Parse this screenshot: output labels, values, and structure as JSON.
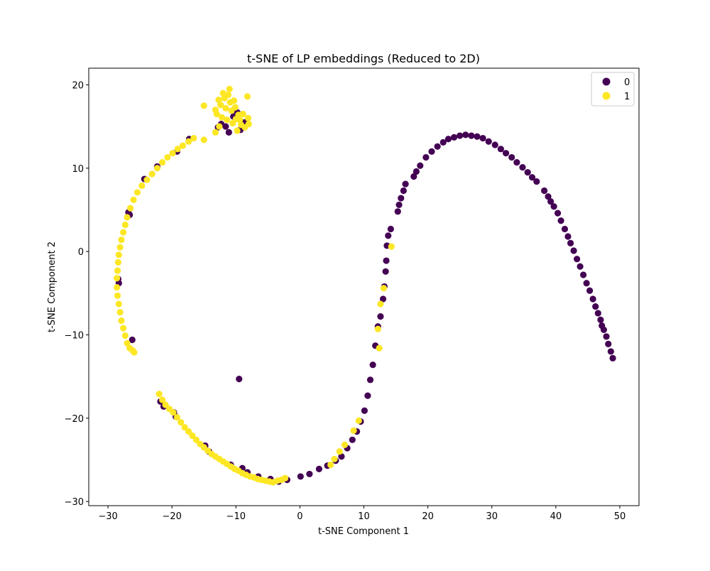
{
  "chart_data": {
    "type": "scatter",
    "title": "t-SNE of LP embeddings (Reduced to 2D)",
    "xlabel": "t-SNE Component 1",
    "ylabel": "t-SNE Component 2",
    "xlim": [
      -33,
      53
    ],
    "ylim": [
      -30.5,
      22
    ],
    "xticks": [
      -30,
      -20,
      -10,
      0,
      10,
      20,
      30,
      40,
      50
    ],
    "yticks": [
      -30,
      -20,
      -10,
      0,
      10,
      20
    ],
    "grid": false,
    "legend_position": "top-right",
    "legend": [
      {
        "label": "0",
        "color": "#440154"
      },
      {
        "label": "1",
        "color": "#fde725"
      }
    ],
    "series": [
      {
        "name": "0",
        "color": "#440154",
        "points": [
          [
            -28.4,
            -3.3
          ],
          [
            -28.3,
            -3.8
          ],
          [
            -26.8,
            4.7
          ],
          [
            -26.6,
            4.4
          ],
          [
            -26.2,
            -10.6
          ],
          [
            -24.3,
            8.7
          ],
          [
            -22.3,
            10.2
          ],
          [
            -19.2,
            12.0
          ],
          [
            -17.3,
            13.5
          ],
          [
            -21.8,
            -18.0
          ],
          [
            -21.3,
            -18.6
          ],
          [
            -19.7,
            -19.3
          ],
          [
            -19.4,
            -19.8
          ],
          [
            -14.8,
            -23.3
          ],
          [
            -14.2,
            -24.0
          ],
          [
            -10.8,
            -25.6
          ],
          [
            -9.5,
            -15.3
          ],
          [
            -9.0,
            -26.0
          ],
          [
            -8.2,
            -26.5
          ],
          [
            -6.5,
            -27.0
          ],
          [
            -4.6,
            -27.3
          ],
          [
            -3.3,
            -27.6
          ],
          [
            -2.0,
            -27.4
          ],
          [
            0.1,
            -27.0
          ],
          [
            1.5,
            -26.7
          ],
          [
            3.0,
            -26.1
          ],
          [
            4.3,
            -25.7
          ],
          [
            5.6,
            -25.1
          ],
          [
            6.5,
            -24.6
          ],
          [
            7.4,
            -23.6
          ],
          [
            8.2,
            -22.6
          ],
          [
            8.9,
            -21.6
          ],
          [
            9.5,
            -20.4
          ],
          [
            10.1,
            -19.1
          ],
          [
            10.6,
            -17.3
          ],
          [
            11.0,
            -15.4
          ],
          [
            11.4,
            -13.6
          ],
          [
            11.8,
            -11.3
          ],
          [
            12.2,
            -9.0
          ],
          [
            12.6,
            -7.8
          ],
          [
            13.0,
            -5.7
          ],
          [
            13.2,
            -4.2
          ],
          [
            13.4,
            -2.4
          ],
          [
            13.5,
            -1.1
          ],
          [
            13.6,
            0.7
          ],
          [
            13.8,
            1.9
          ],
          [
            14.2,
            2.7
          ],
          [
            15.3,
            4.8
          ],
          [
            15.5,
            5.6
          ],
          [
            15.8,
            6.4
          ],
          [
            16.2,
            7.3
          ],
          [
            16.5,
            8.1
          ],
          [
            17.8,
            9.0
          ],
          [
            18.2,
            9.6
          ],
          [
            18.8,
            10.3
          ],
          [
            19.7,
            11.3
          ],
          [
            20.6,
            12.0
          ],
          [
            21.5,
            12.6
          ],
          [
            22.4,
            13.1
          ],
          [
            23.2,
            13.5
          ],
          [
            24.1,
            13.7
          ],
          [
            25.0,
            13.9
          ],
          [
            25.9,
            14.0
          ],
          [
            26.8,
            13.9
          ],
          [
            27.7,
            13.8
          ],
          [
            28.6,
            13.6
          ],
          [
            29.5,
            13.2
          ],
          [
            30.5,
            12.8
          ],
          [
            31.4,
            12.3
          ],
          [
            32.2,
            11.8
          ],
          [
            33.1,
            11.3
          ],
          [
            33.9,
            10.7
          ],
          [
            34.8,
            10.1
          ],
          [
            35.6,
            9.5
          ],
          [
            36.3,
            8.9
          ],
          [
            37.0,
            8.4
          ],
          [
            38.2,
            7.3
          ],
          [
            38.8,
            6.6
          ],
          [
            39.2,
            6.0
          ],
          [
            39.7,
            5.4
          ],
          [
            40.3,
            4.6
          ],
          [
            40.8,
            3.7
          ],
          [
            41.4,
            2.7
          ],
          [
            41.9,
            1.8
          ],
          [
            42.3,
            1.0
          ],
          [
            42.8,
            0.1
          ],
          [
            43.3,
            -0.9
          ],
          [
            43.8,
            -1.8
          ],
          [
            44.3,
            -2.8
          ],
          [
            44.8,
            -3.8
          ],
          [
            45.3,
            -4.7
          ],
          [
            45.8,
            -5.7
          ],
          [
            46.2,
            -6.6
          ],
          [
            46.6,
            -7.4
          ],
          [
            47.0,
            -8.2
          ],
          [
            47.2,
            -8.9
          ],
          [
            47.5,
            -9.4
          ],
          [
            47.9,
            -10.2
          ],
          [
            48.2,
            -11.1
          ],
          [
            48.6,
            -12.0
          ],
          [
            48.9,
            -12.8
          ],
          [
            -12.3,
            15.3
          ],
          [
            -11.6,
            15.0
          ],
          [
            -10.4,
            16.2
          ],
          [
            -9.8,
            16.7
          ],
          [
            -9.3,
            14.6
          ],
          [
            -8.6,
            15.5
          ],
          [
            -12.8,
            14.9
          ],
          [
            -11.1,
            14.3
          ]
        ]
      },
      {
        "name": "1",
        "color": "#fde725",
        "points": [
          [
            -28.6,
            -3.2
          ],
          [
            -28.5,
            -2.3
          ],
          [
            -28.4,
            -1.3
          ],
          [
            -28.3,
            -0.4
          ],
          [
            -28.1,
            0.5
          ],
          [
            -27.9,
            1.4
          ],
          [
            -27.6,
            2.3
          ],
          [
            -27.3,
            3.2
          ],
          [
            -27.0,
            4.1
          ],
          [
            -26.5,
            5.2
          ],
          [
            -26.0,
            6.2
          ],
          [
            -25.4,
            7.1
          ],
          [
            -24.7,
            7.9
          ],
          [
            -23.9,
            8.6
          ],
          [
            -23.1,
            9.3
          ],
          [
            -22.3,
            10.0
          ],
          [
            -21.5,
            10.7
          ],
          [
            -20.7,
            11.3
          ],
          [
            -19.9,
            11.8
          ],
          [
            -19.1,
            12.3
          ],
          [
            -18.3,
            12.7
          ],
          [
            -17.4,
            13.2
          ],
          [
            -16.6,
            13.6
          ],
          [
            -15.0,
            13.4
          ],
          [
            -28.6,
            -4.3
          ],
          [
            -28.5,
            -5.3
          ],
          [
            -28.3,
            -6.3
          ],
          [
            -28.1,
            -7.3
          ],
          [
            -27.9,
            -8.3
          ],
          [
            -27.6,
            -9.2
          ],
          [
            -27.3,
            -10.1
          ],
          [
            -27.0,
            -11.0
          ],
          [
            -26.6,
            -11.6
          ],
          [
            -26.1,
            -11.9
          ],
          [
            -25.9,
            -12.1
          ],
          [
            -15.0,
            17.5
          ],
          [
            -13.2,
            17.0
          ],
          [
            -13.0,
            16.5
          ],
          [
            -12.7,
            18.2
          ],
          [
            -12.4,
            17.6
          ],
          [
            -12.2,
            16.1
          ],
          [
            -12.0,
            19.0
          ],
          [
            -11.8,
            18.4
          ],
          [
            -11.6,
            17.2
          ],
          [
            -11.4,
            15.8
          ],
          [
            -11.2,
            18.8
          ],
          [
            -11.0,
            19.5
          ],
          [
            -10.9,
            17.9
          ],
          [
            -10.7,
            16.9
          ],
          [
            -10.5,
            15.4
          ],
          [
            -10.3,
            18.1
          ],
          [
            -10.1,
            17.3
          ],
          [
            -10.0,
            15.9
          ],
          [
            -9.8,
            14.5
          ],
          [
            -9.6,
            16.4
          ],
          [
            -9.4,
            15.8
          ],
          [
            -9.2,
            15.2
          ],
          [
            -8.9,
            16.5
          ],
          [
            -8.6,
            14.9
          ],
          [
            -8.2,
            18.6
          ],
          [
            -8.1,
            16.0
          ],
          [
            -8.0,
            15.3
          ],
          [
            -13.2,
            14.3
          ],
          [
            -12.6,
            15.0
          ],
          [
            -22.0,
            -17.1
          ],
          [
            -21.5,
            -17.8
          ],
          [
            -21.0,
            -18.4
          ],
          [
            -20.4,
            -18.9
          ],
          [
            -19.8,
            -19.3
          ],
          [
            -19.2,
            -19.9
          ],
          [
            -18.6,
            -20.5
          ],
          [
            -18.0,
            -21.1
          ],
          [
            -17.4,
            -21.6
          ],
          [
            -16.8,
            -22.1
          ],
          [
            -16.2,
            -22.6
          ],
          [
            -15.6,
            -23.1
          ],
          [
            -15.0,
            -23.5
          ],
          [
            -14.4,
            -23.9
          ],
          [
            -13.8,
            -24.3
          ],
          [
            -13.2,
            -24.6
          ],
          [
            -12.6,
            -24.9
          ],
          [
            -12.0,
            -25.2
          ],
          [
            -11.4,
            -25.5
          ],
          [
            -10.8,
            -25.8
          ],
          [
            -10.2,
            -26.1
          ],
          [
            -9.6,
            -26.3
          ],
          [
            -9.0,
            -26.6
          ],
          [
            -8.4,
            -26.8
          ],
          [
            -7.8,
            -27.0
          ],
          [
            -7.2,
            -27.1
          ],
          [
            -6.6,
            -27.3
          ],
          [
            -6.0,
            -27.4
          ],
          [
            -5.4,
            -27.5
          ],
          [
            -4.8,
            -27.6
          ],
          [
            -4.2,
            -27.7
          ],
          [
            -3.5,
            -27.5
          ],
          [
            -2.9,
            -27.4
          ],
          [
            -2.3,
            -27.2
          ],
          [
            4.8,
            -25.6
          ],
          [
            5.4,
            -24.9
          ],
          [
            6.2,
            -24.0
          ],
          [
            7.0,
            -23.2
          ],
          [
            8.4,
            -21.5
          ],
          [
            9.2,
            -20.3
          ],
          [
            12.2,
            -9.3
          ],
          [
            12.6,
            -6.3
          ],
          [
            13.1,
            -4.4
          ],
          [
            14.3,
            0.6
          ],
          [
            12.4,
            -11.6
          ]
        ]
      }
    ]
  }
}
